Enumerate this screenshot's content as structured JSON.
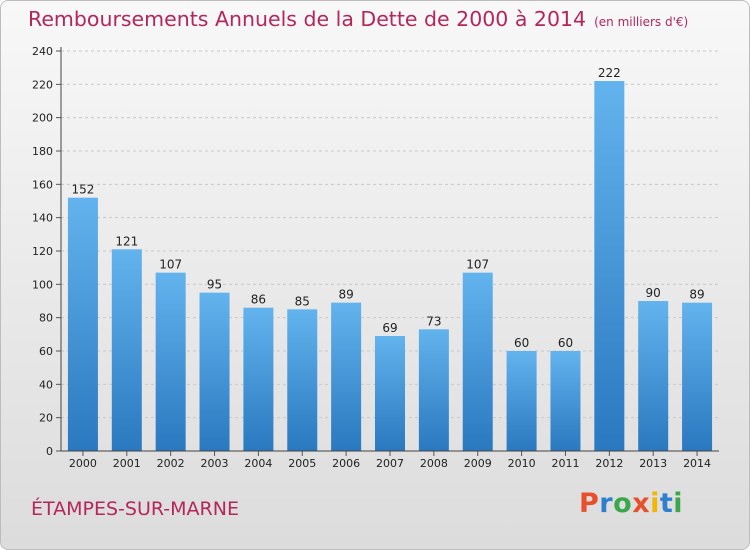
{
  "header": {
    "title": "Remboursements Annuels de la Dette de 2000 à 2014",
    "unit": "(en milliers d'€)"
  },
  "footer": {
    "place": "ÉTAMPES-SUR-MARNE",
    "logo": [
      "P",
      "r",
      "o",
      "x",
      "i",
      "t",
      "i"
    ],
    "logo_colors": [
      "#e8502b",
      "#2e7fd0",
      "#3aa84a",
      "#e8502b",
      "#f4b400",
      "#2e7fd0",
      "#3aa84a"
    ]
  },
  "chart_data": {
    "type": "bar",
    "title": "Remboursements Annuels de la Dette de 2000 à 2014",
    "categories": [
      "2000",
      "2001",
      "2002",
      "2003",
      "2004",
      "2005",
      "2006",
      "2007",
      "2008",
      "2009",
      "2010",
      "2011",
      "2012",
      "2013",
      "2014"
    ],
    "values": [
      152,
      121,
      107,
      95,
      86,
      85,
      89,
      69,
      73,
      107,
      60,
      60,
      222,
      90,
      89
    ],
    "ylim": [
      0,
      240
    ],
    "yticks": [
      0,
      20,
      40,
      60,
      80,
      100,
      120,
      140,
      160,
      180,
      200,
      220,
      240
    ],
    "grid": true,
    "bar_color": "#3b8fd8"
  }
}
